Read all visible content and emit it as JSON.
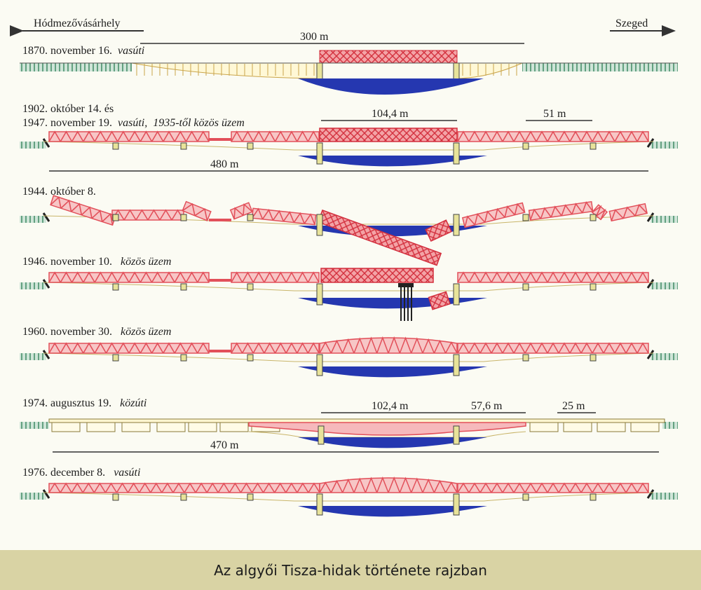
{
  "directions": {
    "left": "Hódmezővásárhely",
    "right": "Szeged"
  },
  "rows": [
    {
      "date": "1870. november 16.",
      "note": "vasúti",
      "note2": ""
    },
    {
      "date": "1902. október 14. és",
      "date2": "1947. november 19.",
      "note": "vasúti,",
      "note2": "1935-től közös üzem"
    },
    {
      "date": "1944. október 8.",
      "note": "",
      "note2": ""
    },
    {
      "date": "1946. november 10.",
      "note": "közös üzem",
      "note2": ""
    },
    {
      "date": "1960. november 30.",
      "note": "közös üzem",
      "note2": ""
    },
    {
      "date": "1974. augusztus 19.",
      "note": "közúti",
      "note2": ""
    },
    {
      "date": "1976. december 8.",
      "note": "vasúti",
      "note2": ""
    }
  ],
  "dimensions": {
    "d1870_total": "300 m",
    "d1902_main": "104,4 m",
    "d1902_side": "51 m",
    "d1902_total": "480 m",
    "d1974_main": "102,4 m",
    "d1974_mid": "57,6 m",
    "d1974_side": "25 m",
    "d1974_total": "470 m"
  },
  "colors": {
    "truss": "#e2505a",
    "truss_fill": "#f7c6c6",
    "water": "#2537b0",
    "embankment": "#3f8a63",
    "pier": "#e8e39a",
    "background": "#fbfbf3",
    "caption_bar": "#d9d3a4"
  },
  "caption": "Az algyői Tisza-hidak története rajzban"
}
